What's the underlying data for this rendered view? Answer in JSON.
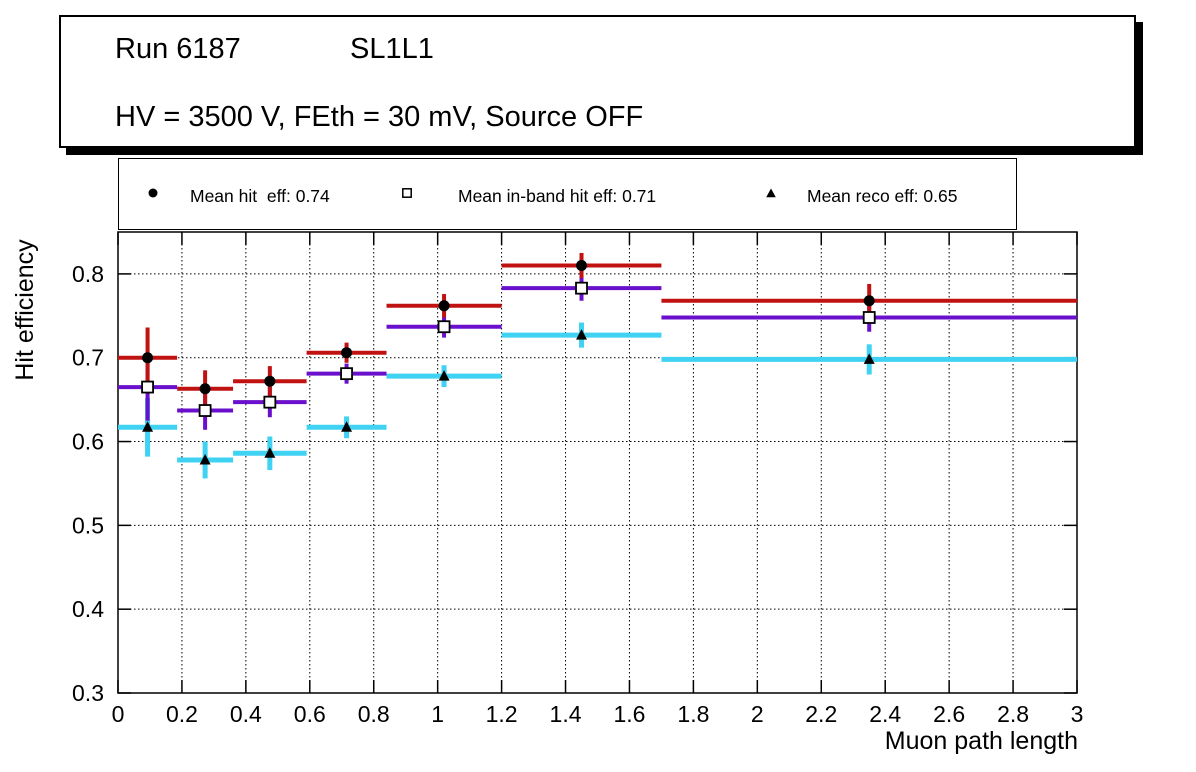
{
  "title_box": {
    "run": "Run 6187",
    "layer": "SL1L1",
    "conditions": "HV = 3500 V, FEth = 30 mV, Source OFF"
  },
  "legend": {
    "entries": [
      {
        "marker": "filled-circle",
        "label": "Mean hit  eff: 0.74"
      },
      {
        "marker": "open-square",
        "label": "Mean in-band hit eff: 0.71"
      },
      {
        "marker": "filled-triangle",
        "label": "Mean reco eff: 0.65"
      }
    ]
  },
  "chart_data": {
    "type": "scatter",
    "title": "",
    "xlabel": "Muon path length",
    "ylabel": "Hit efficiency",
    "xlim": [
      0,
      3
    ],
    "ylim": [
      0.3,
      0.85
    ],
    "grid": true,
    "grid_style": "dotted",
    "x_ticks": [
      0,
      0.2,
      0.4,
      0.6,
      0.8,
      1,
      1.2,
      1.4,
      1.6,
      1.8,
      2,
      2.2,
      2.4,
      2.6,
      2.8,
      3
    ],
    "x_tick_labels": [
      "0",
      "0.2",
      "0.4",
      "0.6",
      "0.8",
      "1",
      "1.2",
      "1.4",
      "1.6",
      "1.8",
      "2",
      "2.2",
      "2.4",
      "2.6",
      "2.8",
      "3"
    ],
    "y_ticks": [
      0.3,
      0.4,
      0.5,
      0.6,
      0.7,
      0.8
    ],
    "y_tick_labels": [
      "0.3",
      "0.4",
      "0.5",
      "0.6",
      "0.7",
      "0.8"
    ],
    "bin_edges": [
      0,
      0.185,
      0.36,
      0.59,
      0.84,
      1.2,
      1.7,
      3.0
    ],
    "x": [
      0.0925,
      0.2725,
      0.475,
      0.715,
      1.02,
      1.45,
      2.35
    ],
    "series": [
      {
        "key": "reco",
        "name": "Mean reco eff",
        "mean": 0.65,
        "marker": "filled-triangle",
        "marker_color": "#000000",
        "line_color": "#3fd2f2",
        "line_width": 5,
        "y": [
          0.617,
          0.578,
          0.586,
          0.617,
          0.678,
          0.727,
          0.698
        ],
        "ey": [
          0.035,
          0.022,
          0.02,
          0.013,
          0.013,
          0.015,
          0.018
        ]
      },
      {
        "key": "inband",
        "name": "Mean in-band hit eff",
        "mean": 0.71,
        "marker": "open-square",
        "marker_color": "#ffffff",
        "line_color": "#6a10cc",
        "line_width": 4,
        "y": [
          0.665,
          0.637,
          0.647,
          0.681,
          0.737,
          0.783,
          0.748
        ],
        "ey": [
          0.04,
          0.023,
          0.018,
          0.012,
          0.013,
          0.015,
          0.017
        ]
      },
      {
        "key": "hit",
        "name": "Mean hit eff",
        "mean": 0.74,
        "marker": "filled-circle",
        "marker_color": "#000000",
        "line_color": "#c11212",
        "line_width": 4,
        "y": [
          0.7,
          0.663,
          0.672,
          0.706,
          0.762,
          0.81,
          0.768
        ],
        "ey": [
          0.036,
          0.022,
          0.018,
          0.012,
          0.014,
          0.015,
          0.02
        ]
      }
    ]
  }
}
